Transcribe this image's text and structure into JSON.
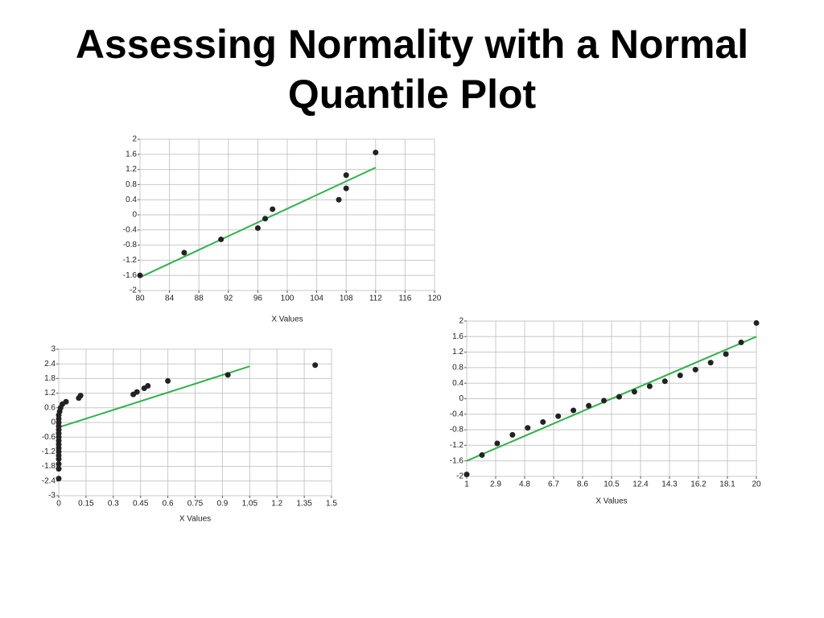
{
  "title": "Assessing Normality with a Normal Quantile Plot",
  "chart_data": [
    {
      "type": "scatter",
      "xlabel": "X Values",
      "x": [
        80,
        86,
        91,
        96,
        97,
        98,
        107,
        108,
        108,
        112
      ],
      "values": [
        -1.6,
        -1.0,
        -0.65,
        -0.35,
        -0.1,
        0.15,
        0.4,
        1.05,
        0.7,
        1.65
      ],
      "color": "#222222",
      "fit": {
        "x": [
          80,
          112
        ],
        "values": [
          -1.65,
          1.25
        ],
        "color": "#2db34a"
      },
      "xlim": [
        80,
        120
      ],
      "xticks": [
        80,
        84,
        88,
        92,
        96,
        100,
        104,
        108,
        112,
        116,
        120
      ],
      "ylim": [
        -2,
        2
      ],
      "yticks": [
        -2,
        -1.6,
        -1.2,
        -0.8,
        -0.4,
        0,
        0.4,
        0.8,
        1.2,
        1.6,
        2
      ],
      "grid": true
    },
    {
      "type": "scatter",
      "xlabel": "X Values",
      "x": [
        0,
        0,
        0,
        0,
        0,
        0,
        0,
        0,
        0,
        0,
        0,
        0,
        0,
        0,
        0,
        0,
        0.005,
        0.01,
        0.02,
        0.04,
        0.11,
        0.12,
        0.41,
        0.43,
        0.47,
        0.49,
        0.6,
        0.93,
        1.41
      ],
      "values": [
        -2.3,
        -1.9,
        -1.7,
        -1.5,
        -1.35,
        -1.2,
        -1.05,
        -0.9,
        -0.75,
        -0.6,
        -0.45,
        -0.3,
        -0.15,
        0,
        0.15,
        0.3,
        0.45,
        0.6,
        0.75,
        0.85,
        1.0,
        1.1,
        1.15,
        1.25,
        1.4,
        1.5,
        1.7,
        1.95,
        2.35
      ],
      "color": "#222222",
      "fit": {
        "x": [
          0,
          1.05
        ],
        "values": [
          -0.2,
          2.3
        ],
        "color": "#2db34a"
      },
      "xlim": [
        0,
        1.5
      ],
      "xticks": [
        0,
        0.15,
        0.3,
        0.45,
        0.6,
        0.75,
        0.9,
        1.05,
        1.2,
        1.35,
        1.5
      ],
      "ylim": [
        -3,
        3
      ],
      "yticks": [
        -3,
        -2.4,
        -1.8,
        -1.2,
        -0.6,
        0,
        0.6,
        1.2,
        1.8,
        2.4,
        3
      ],
      "grid": true
    },
    {
      "type": "scatter",
      "xlabel": "X Values",
      "x": [
        1,
        2,
        3,
        4,
        5,
        6,
        7,
        8,
        9,
        10,
        11,
        12,
        13,
        14,
        15,
        16,
        17,
        18,
        19,
        20
      ],
      "values": [
        -1.95,
        -1.45,
        -1.15,
        -0.93,
        -0.75,
        -0.6,
        -0.45,
        -0.3,
        -0.18,
        -0.05,
        0.05,
        0.18,
        0.32,
        0.45,
        0.6,
        0.75,
        0.93,
        1.15,
        1.45,
        1.95
      ],
      "color": "#222222",
      "fit": {
        "x": [
          1,
          20
        ],
        "values": [
          -1.6,
          1.6
        ],
        "color": "#2db34a"
      },
      "xlim": [
        1,
        20
      ],
      "xticks": [
        1,
        2.9,
        4.8,
        6.7,
        8.6,
        10.5,
        12.4,
        14.3,
        16.2,
        18.1,
        20
      ],
      "ylim": [
        -2,
        2
      ],
      "yticks": [
        -2,
        -1.6,
        -1.2,
        -0.8,
        -0.4,
        0,
        0.4,
        0.8,
        1.2,
        1.6,
        2
      ],
      "grid": true
    }
  ]
}
